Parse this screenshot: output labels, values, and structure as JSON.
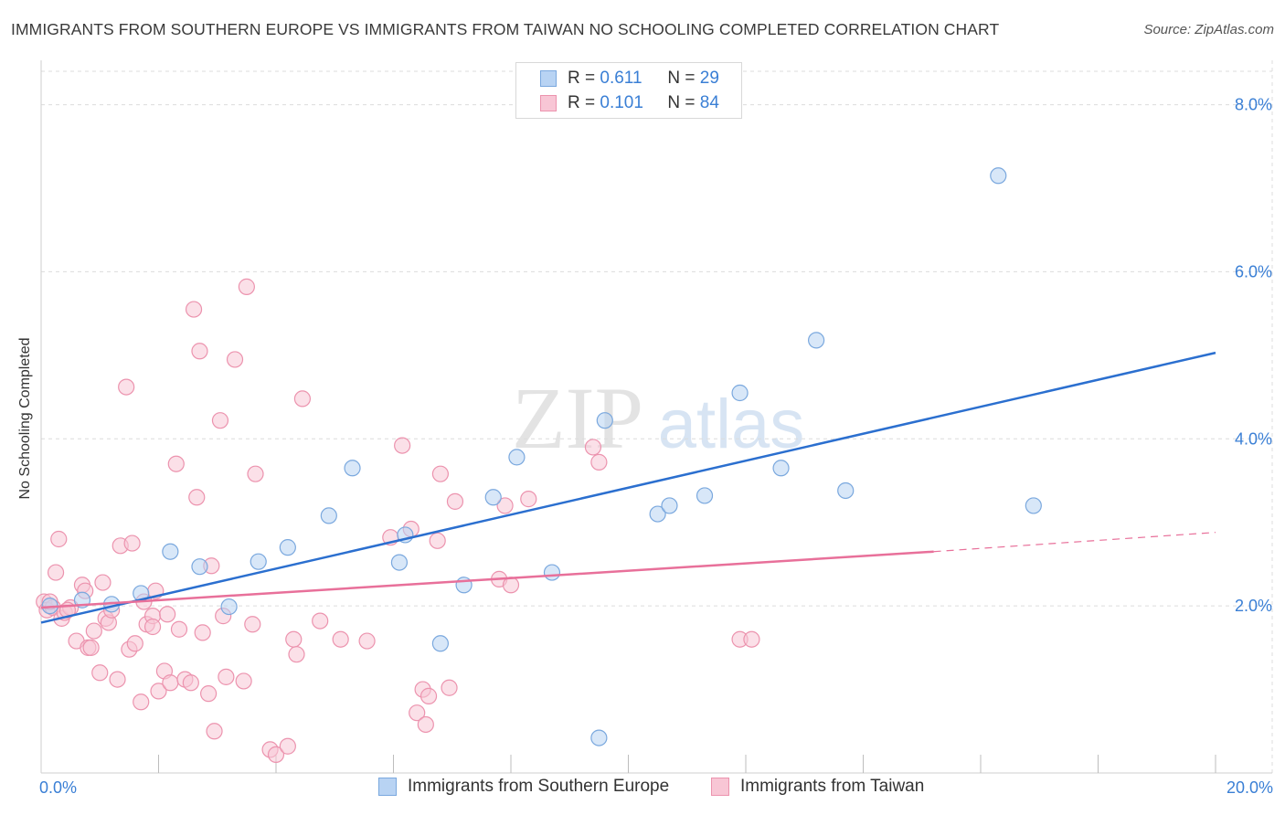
{
  "title": "IMMIGRANTS FROM SOUTHERN EUROPE VS IMMIGRANTS FROM TAIWAN NO SCHOOLING COMPLETED CORRELATION CHART",
  "source": "Source: ZipAtlas.com",
  "watermark": {
    "zip": "ZIP",
    "atlas": "atlas"
  },
  "legend": {
    "r_label": "R =",
    "n_label": "N =",
    "series": [
      {
        "r": "0.611",
        "n": "29"
      },
      {
        "r": "0.101",
        "n": "84"
      }
    ]
  },
  "colors": {
    "blue_fill": "#b8d3f3",
    "blue_stroke": "#7aa8de",
    "blue_line": "#2b6fcf",
    "pink_fill": "#f8c6d5",
    "pink_stroke": "#ec93ae",
    "pink_line": "#e8709a",
    "tick_text": "#3a7fd5"
  },
  "chart_data": {
    "type": "scatter",
    "title": "IMMIGRANTS FROM SOUTHERN EUROPE VS IMMIGRANTS FROM TAIWAN NO SCHOOLING COMPLETED CORRELATION CHART",
    "xlabel": "",
    "ylabel": "No Schooling Completed",
    "xlim": [
      0,
      20
    ],
    "ylim": [
      0,
      8.4
    ],
    "x_tick_labels": [
      "0.0%",
      "20.0%"
    ],
    "y_ticks": [
      2,
      4,
      6,
      8
    ],
    "y_tick_labels": [
      "2.0%",
      "4.0%",
      "6.0%",
      "8.0%"
    ],
    "grid": true,
    "legend_position": "top-center",
    "series": [
      {
        "name": "Immigrants from Southern Europe",
        "r": 0.611,
        "n": 29,
        "trend": {
          "x": [
            0,
            20
          ],
          "y": [
            1.8,
            5.03
          ]
        },
        "points": [
          [
            0.15,
            2.0
          ],
          [
            0.7,
            2.07
          ],
          [
            1.2,
            2.02
          ],
          [
            1.7,
            2.15
          ],
          [
            2.2,
            2.65
          ],
          [
            2.7,
            2.47
          ],
          [
            3.2,
            1.99
          ],
          [
            3.7,
            2.53
          ],
          [
            4.2,
            2.7
          ],
          [
            4.9,
            3.08
          ],
          [
            5.3,
            3.65
          ],
          [
            6.1,
            2.52
          ],
          [
            6.2,
            2.85
          ],
          [
            6.8,
            1.55
          ],
          [
            7.2,
            2.25
          ],
          [
            7.7,
            3.3
          ],
          [
            8.1,
            3.78
          ],
          [
            8.7,
            2.4
          ],
          [
            9.5,
            0.42
          ],
          [
            9.6,
            4.22
          ],
          [
            10.5,
            3.1
          ],
          [
            10.7,
            3.2
          ],
          [
            11.3,
            3.32
          ],
          [
            11.9,
            4.55
          ],
          [
            12.6,
            3.65
          ],
          [
            13.2,
            5.18
          ],
          [
            13.7,
            3.38
          ],
          [
            16.3,
            7.15
          ],
          [
            16.9,
            3.2
          ]
        ]
      },
      {
        "name": "Immigrants from Taiwan",
        "r": 0.101,
        "n": 84,
        "trend": {
          "x": [
            0,
            15.2
          ],
          "y": [
            1.98,
            2.65
          ]
        },
        "trend_dashed": {
          "x": [
            15.2,
            20
          ],
          "y": [
            2.65,
            2.88
          ]
        },
        "points": [
          [
            0.05,
            2.05
          ],
          [
            0.1,
            1.95
          ],
          [
            0.2,
            1.98
          ],
          [
            0.25,
            2.4
          ],
          [
            0.3,
            2.8
          ],
          [
            0.35,
            1.85
          ],
          [
            0.4,
            1.92
          ],
          [
            0.5,
            1.98
          ],
          [
            0.6,
            1.58
          ],
          [
            0.7,
            2.25
          ],
          [
            0.75,
            2.18
          ],
          [
            0.8,
            1.5
          ],
          [
            0.85,
            1.5
          ],
          [
            0.9,
            1.7
          ],
          [
            1.0,
            1.2
          ],
          [
            1.05,
            2.28
          ],
          [
            1.1,
            1.85
          ],
          [
            1.15,
            1.8
          ],
          [
            1.2,
            1.95
          ],
          [
            1.3,
            1.12
          ],
          [
            1.35,
            2.72
          ],
          [
            1.45,
            4.62
          ],
          [
            1.5,
            1.48
          ],
          [
            1.55,
            2.75
          ],
          [
            1.6,
            1.55
          ],
          [
            1.7,
            0.85
          ],
          [
            1.75,
            2.05
          ],
          [
            1.8,
            1.78
          ],
          [
            1.9,
            1.88
          ],
          [
            1.95,
            2.18
          ],
          [
            2.0,
            0.98
          ],
          [
            2.1,
            1.22
          ],
          [
            2.15,
            1.9
          ],
          [
            2.2,
            1.08
          ],
          [
            2.3,
            3.7
          ],
          [
            2.35,
            1.72
          ],
          [
            2.45,
            1.12
          ],
          [
            2.55,
            1.08
          ],
          [
            2.6,
            5.55
          ],
          [
            2.65,
            3.3
          ],
          [
            2.7,
            5.05
          ],
          [
            2.75,
            1.68
          ],
          [
            2.85,
            0.95
          ],
          [
            2.9,
            2.48
          ],
          [
            2.95,
            0.5
          ],
          [
            3.05,
            4.22
          ],
          [
            3.1,
            1.88
          ],
          [
            3.15,
            1.15
          ],
          [
            3.3,
            4.95
          ],
          [
            3.45,
            1.1
          ],
          [
            3.5,
            5.82
          ],
          [
            3.6,
            1.78
          ],
          [
            3.65,
            3.58
          ],
          [
            3.9,
            0.28
          ],
          [
            4.0,
            0.22
          ],
          [
            4.2,
            0.32
          ],
          [
            4.3,
            1.6
          ],
          [
            4.35,
            1.42
          ],
          [
            4.45,
            4.48
          ],
          [
            4.75,
            1.82
          ],
          [
            5.1,
            1.6
          ],
          [
            5.55,
            1.58
          ],
          [
            5.95,
            2.82
          ],
          [
            6.15,
            3.92
          ],
          [
            6.3,
            2.92
          ],
          [
            6.4,
            0.72
          ],
          [
            6.5,
            1.0
          ],
          [
            6.55,
            0.58
          ],
          [
            6.6,
            0.92
          ],
          [
            6.75,
            2.78
          ],
          [
            6.8,
            3.58
          ],
          [
            6.95,
            1.02
          ],
          [
            7.05,
            3.25
          ],
          [
            7.8,
            2.32
          ],
          [
            7.9,
            3.2
          ],
          [
            8.0,
            2.25
          ],
          [
            8.3,
            3.28
          ],
          [
            9.4,
            3.9
          ],
          [
            9.5,
            3.72
          ],
          [
            11.9,
            1.6
          ],
          [
            12.1,
            1.6
          ],
          [
            0.15,
            2.05
          ],
          [
            0.45,
            1.95
          ],
          [
            1.9,
            1.75
          ]
        ]
      }
    ]
  }
}
